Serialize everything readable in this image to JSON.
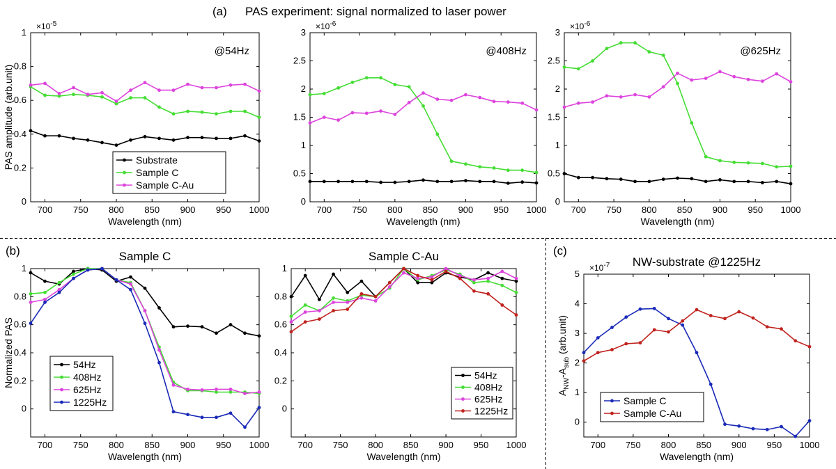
{
  "figure": {
    "label_a": "(a)",
    "title_a": "PAS experiment: signal normalized to laser power",
    "label_b": "(b)",
    "label_c": "(c)"
  },
  "colors": {
    "black": "#000000",
    "green": "#44dd33",
    "magenta": "#dd44dd",
    "blue": "#1a2ab8",
    "red": "#c0221e"
  },
  "chart_data": [
    {
      "id": "a1",
      "type": "line",
      "title": "",
      "annotation": "@54Hz",
      "exponent": "-5",
      "xlabel": "Wavelength (nm)",
      "ylabel": "PAS amplitude (arb.unit)",
      "xlim": [
        680,
        1000
      ],
      "ylim": [
        0,
        1
      ],
      "xticks": [
        "700",
        "750",
        "800",
        "850",
        "900",
        "950",
        "1000"
      ],
      "yticks": [
        "0",
        "0.2",
        "0.4",
        "0.6",
        "0.8",
        "1"
      ],
      "legend": "lower-center",
      "x": [
        680,
        700,
        720,
        740,
        760,
        780,
        800,
        820,
        840,
        860,
        880,
        900,
        920,
        940,
        960,
        980,
        1000
      ],
      "series": [
        {
          "name": "Substrate",
          "color": "black",
          "values": [
            0.42,
            0.39,
            0.39,
            0.375,
            0.365,
            0.35,
            0.335,
            0.365,
            0.385,
            0.375,
            0.365,
            0.38,
            0.38,
            0.375,
            0.375,
            0.39,
            0.36
          ]
        },
        {
          "name": "Sample C",
          "color": "green",
          "values": [
            0.68,
            0.63,
            0.625,
            0.635,
            0.63,
            0.62,
            0.58,
            0.615,
            0.615,
            0.56,
            0.52,
            0.535,
            0.53,
            0.52,
            0.535,
            0.535,
            0.5
          ]
        },
        {
          "name": "Sample C-Au",
          "color": "magenta",
          "values": [
            0.69,
            0.7,
            0.64,
            0.675,
            0.635,
            0.645,
            0.595,
            0.66,
            0.705,
            0.66,
            0.66,
            0.695,
            0.675,
            0.675,
            0.69,
            0.695,
            0.655
          ]
        }
      ]
    },
    {
      "id": "a2",
      "type": "line",
      "title": "",
      "annotation": "@408Hz",
      "exponent": "-6",
      "xlabel": "Wavelength (nm)",
      "ylabel": "",
      "xlim": [
        680,
        1000
      ],
      "ylim": [
        0,
        3
      ],
      "xticks": [
        "700",
        "750",
        "800",
        "850",
        "900",
        "950",
        "1000"
      ],
      "yticks": [
        "0",
        "0.5",
        "1",
        "1.5",
        "2",
        "2.5",
        "3"
      ],
      "legend": "none",
      "x": [
        680,
        700,
        720,
        740,
        760,
        780,
        800,
        820,
        840,
        860,
        880,
        900,
        920,
        940,
        960,
        980,
        1000
      ],
      "series": [
        {
          "name": "Substrate",
          "color": "black",
          "values": [
            0.36,
            0.36,
            0.36,
            0.36,
            0.36,
            0.345,
            0.345,
            0.36,
            0.385,
            0.36,
            0.36,
            0.375,
            0.36,
            0.36,
            0.33,
            0.35,
            0.335
          ]
        },
        {
          "name": "Sample C",
          "color": "green",
          "values": [
            1.9,
            1.92,
            2.02,
            2.12,
            2.2,
            2.2,
            2.08,
            2.04,
            1.7,
            1.2,
            0.72,
            0.67,
            0.62,
            0.6,
            0.56,
            0.56,
            0.52
          ]
        },
        {
          "name": "Sample C-Au",
          "color": "magenta",
          "values": [
            1.4,
            1.5,
            1.45,
            1.58,
            1.57,
            1.61,
            1.55,
            1.76,
            1.93,
            1.82,
            1.8,
            1.9,
            1.85,
            1.78,
            1.77,
            1.75,
            1.63
          ]
        }
      ]
    },
    {
      "id": "a3",
      "type": "line",
      "title": "",
      "annotation": "@625Hz",
      "exponent": "-6",
      "xlabel": "Wavelength (nm)",
      "ylabel": "",
      "xlim": [
        680,
        1000
      ],
      "ylim": [
        0,
        3
      ],
      "xticks": [
        "700",
        "750",
        "800",
        "850",
        "900",
        "950",
        "1000"
      ],
      "yticks": [
        "0",
        "0.5",
        "1",
        "1.5",
        "2",
        "2.5",
        "3"
      ],
      "legend": "none",
      "x": [
        680,
        700,
        720,
        740,
        760,
        780,
        800,
        820,
        840,
        860,
        880,
        900,
        920,
        940,
        960,
        980,
        1000
      ],
      "series": [
        {
          "name": "Substrate",
          "color": "black",
          "values": [
            0.5,
            0.43,
            0.43,
            0.41,
            0.4,
            0.36,
            0.36,
            0.4,
            0.42,
            0.41,
            0.36,
            0.39,
            0.36,
            0.36,
            0.34,
            0.36,
            0.32
          ]
        },
        {
          "name": "Sample C",
          "color": "green",
          "values": [
            2.39,
            2.36,
            2.5,
            2.72,
            2.82,
            2.82,
            2.66,
            2.6,
            2.1,
            1.4,
            0.8,
            0.73,
            0.7,
            0.69,
            0.68,
            0.62,
            0.63
          ]
        },
        {
          "name": "Sample C-Au",
          "color": "magenta",
          "values": [
            1.68,
            1.75,
            1.77,
            1.88,
            1.86,
            1.9,
            1.86,
            2.04,
            2.28,
            2.16,
            2.19,
            2.31,
            2.22,
            2.17,
            2.14,
            2.27,
            2.13
          ]
        }
      ]
    },
    {
      "id": "b1",
      "type": "line",
      "title": "Sample C",
      "annotation": "",
      "exponent": "",
      "xlabel": "Wavelength (nm)",
      "ylabel": "Normalized PAS",
      "xlim": [
        680,
        1000
      ],
      "ylim": [
        -0.2,
        1
      ],
      "xticks": [
        "700",
        "750",
        "800",
        "850",
        "900",
        "950",
        "1000"
      ],
      "yticks": [
        "0",
        "0.2",
        "0.4",
        "0.6",
        "0.8",
        "1"
      ],
      "legend": "lower-left",
      "x": [
        680,
        700,
        720,
        740,
        760,
        780,
        800,
        820,
        840,
        860,
        880,
        900,
        920,
        940,
        960,
        980,
        1000
      ],
      "series": [
        {
          "name": "54Hz",
          "color": "black",
          "values": [
            0.97,
            0.91,
            0.89,
            0.98,
            1.0,
            0.99,
            0.91,
            0.94,
            0.86,
            0.72,
            0.585,
            0.59,
            0.585,
            0.54,
            0.6,
            0.54,
            0.52
          ]
        },
        {
          "name": "408Hz",
          "color": "green",
          "values": [
            0.82,
            0.83,
            0.9,
            0.96,
            1.0,
            1.0,
            0.92,
            0.9,
            0.7,
            0.44,
            0.19,
            0.13,
            0.13,
            0.12,
            0.12,
            0.12,
            0.11
          ]
        },
        {
          "name": "625Hz",
          "color": "magenta",
          "values": [
            0.76,
            0.78,
            0.85,
            0.93,
            0.99,
            1.0,
            0.92,
            0.89,
            0.7,
            0.42,
            0.17,
            0.14,
            0.135,
            0.14,
            0.14,
            0.11,
            0.12
          ]
        },
        {
          "name": "1225Hz",
          "color": "blue",
          "values": [
            0.61,
            0.76,
            0.83,
            0.93,
            0.99,
            1.0,
            0.92,
            0.85,
            0.61,
            0.33,
            -0.02,
            -0.04,
            -0.06,
            -0.06,
            -0.03,
            -0.13,
            0.01
          ]
        }
      ]
    },
    {
      "id": "b2",
      "type": "line",
      "title": "Sample C-Au",
      "annotation": "",
      "exponent": "",
      "xlabel": "Wavelength (nm)",
      "ylabel": "",
      "xlim": [
        680,
        1000
      ],
      "ylim": [
        -0.2,
        1
      ],
      "xticks": [
        "700",
        "750",
        "800",
        "850",
        "900",
        "950",
        "1000"
      ],
      "yticks": [
        "0",
        "0.2",
        "0.4",
        "0.6",
        "0.8",
        "1"
      ],
      "legend": "lower-right",
      "x": [
        680,
        700,
        720,
        740,
        760,
        780,
        800,
        820,
        840,
        860,
        880,
        900,
        920,
        940,
        960,
        980,
        1000
      ],
      "series": [
        {
          "name": "54Hz",
          "color": "black",
          "values": [
            0.8,
            0.95,
            0.78,
            0.96,
            0.83,
            0.91,
            0.8,
            0.9,
            1.0,
            0.9,
            0.9,
            0.97,
            0.94,
            0.92,
            0.97,
            0.93,
            0.91
          ]
        },
        {
          "name": "408Hz",
          "color": "green",
          "values": [
            0.66,
            0.74,
            0.7,
            0.79,
            0.77,
            0.81,
            0.8,
            0.86,
            1.0,
            0.92,
            0.95,
            0.99,
            0.96,
            0.9,
            0.91,
            0.88,
            0.83
          ]
        },
        {
          "name": "625Hz",
          "color": "magenta",
          "values": [
            0.62,
            0.69,
            0.7,
            0.76,
            0.76,
            0.79,
            0.77,
            0.87,
            0.97,
            0.93,
            0.94,
            1.0,
            0.95,
            0.92,
            0.93,
            0.98,
            0.93
          ]
        },
        {
          "name": "1225Hz",
          "color": "red",
          "values": [
            0.55,
            0.62,
            0.64,
            0.7,
            0.71,
            0.82,
            0.8,
            0.9,
            1.0,
            0.95,
            0.92,
            0.98,
            0.93,
            0.84,
            0.82,
            0.74,
            0.67
          ]
        }
      ]
    },
    {
      "id": "c",
      "type": "line",
      "title": "NW-substrate @1225Hz",
      "annotation": "",
      "exponent": "-7",
      "xlabel": "Wavelength (nm)",
      "ylabel": "A_NW-A_sub (arb.unit)",
      "ylabel_parts": {
        "a1": "A",
        "s1": "NW",
        "mid": "-A",
        "s2": "sub",
        "tail": " (arb.unit)"
      },
      "xlim": [
        680,
        1000
      ],
      "ylim": [
        -0.5,
        5
      ],
      "xticks": [
        "700",
        "750",
        "800",
        "850",
        "900",
        "950",
        "1000"
      ],
      "yticks": [
        "0",
        "1",
        "2",
        "3",
        "4",
        "5"
      ],
      "legend": "lower-left",
      "x": [
        680,
        700,
        720,
        740,
        760,
        780,
        800,
        820,
        840,
        860,
        880,
        900,
        920,
        940,
        960,
        980,
        1000
      ],
      "series": [
        {
          "name": "Sample C",
          "color": "blue",
          "values": [
            2.35,
            2.85,
            3.2,
            3.55,
            3.82,
            3.84,
            3.5,
            3.28,
            2.35,
            1.28,
            -0.07,
            -0.13,
            -0.22,
            -0.25,
            -0.15,
            -0.48,
            0.05
          ]
        },
        {
          "name": "Sample C-Au",
          "color": "red",
          "values": [
            2.07,
            2.35,
            2.45,
            2.65,
            2.68,
            3.12,
            3.05,
            3.42,
            3.8,
            3.6,
            3.5,
            3.73,
            3.52,
            3.22,
            3.15,
            2.75,
            2.55
          ]
        }
      ]
    }
  ]
}
